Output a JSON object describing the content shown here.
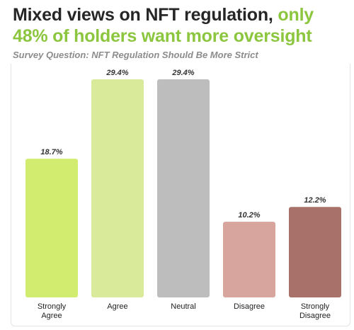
{
  "title": {
    "line1": "Mixed views on NFT regulation,",
    "line1_accent": "only",
    "line2": "48% of holders want more oversight"
  },
  "subtitle": "Survey Question: NFT Regulation Should Be More Strict",
  "colors": {
    "title": "#262626",
    "accent": "#8cc63f",
    "subtitle": "#8c8c8c"
  },
  "chart_data": {
    "type": "bar",
    "categories": [
      "Strongly Agree",
      "Agree",
      "Neutral",
      "Disagree",
      "Strongly Disagree"
    ],
    "category_lines": [
      [
        "Strongly",
        "Agree"
      ],
      [
        "Agree"
      ],
      [
        "Neutral"
      ],
      [
        "Disagree"
      ],
      [
        "Strongly",
        "Disagree"
      ]
    ],
    "values": [
      18.7,
      29.4,
      29.4,
      10.2,
      12.2
    ],
    "value_labels": [
      "18.7%",
      "29.4%",
      "29.4%",
      "10.2%",
      "12.2%"
    ],
    "colors": [
      "#d2ec6f",
      "#d9ea9b",
      "#bdbdbd",
      "#d7a59e",
      "#a8716a"
    ],
    "unit": "%",
    "ylim": [
      0,
      29.4
    ],
    "grid": false,
    "legend": "none"
  }
}
